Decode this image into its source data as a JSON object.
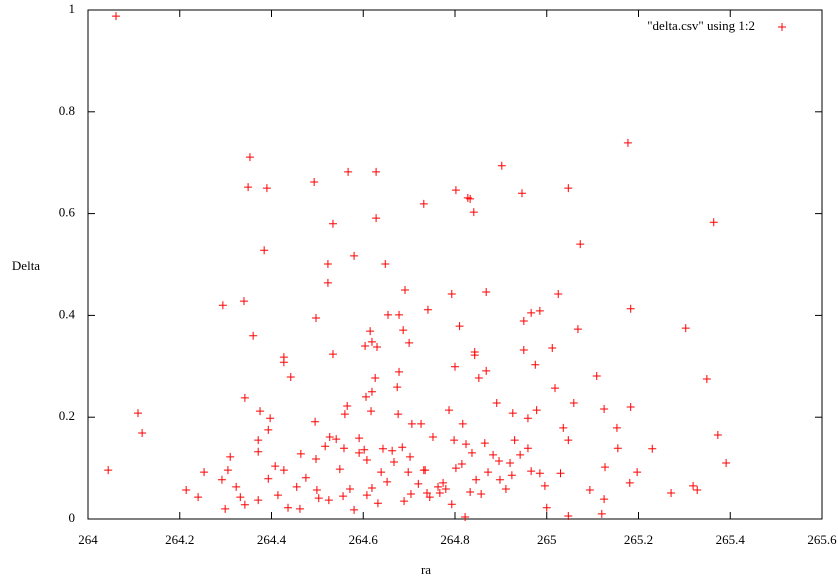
{
  "chart_data": {
    "type": "scatter",
    "xlabel": "ra",
    "ylabel": "Delta",
    "xlim": [
      264,
      265.6
    ],
    "ylim": [
      0,
      1
    ],
    "xticks": [
      264,
      264.2,
      264.4,
      264.6,
      264.8,
      265,
      265.2,
      265.4,
      265.6
    ],
    "yticks": [
      0,
      0.2,
      0.4,
      0.6,
      0.8,
      1
    ],
    "legend": "upper right",
    "series": [
      {
        "name": "\"delta.csv\" using 1:2",
        "color": "#ff0000",
        "x": [
          264.061,
          264.044,
          264.109,
          264.118,
          264.214,
          264.24,
          264.253,
          264.294,
          264.353,
          264.349,
          264.39,
          264.34,
          264.36,
          264.384,
          264.342,
          264.427,
          264.427,
          264.442,
          264.493,
          264.497,
          264.523,
          264.523,
          264.534,
          264.534,
          264.565,
          264.58,
          264.567,
          264.628,
          264.628,
          264.648,
          264.604,
          264.619,
          264.615,
          264.63,
          264.654,
          264.691,
          264.678,
          264.687,
          264.7,
          264.732,
          264.741,
          264.802,
          264.828,
          264.833,
          264.841,
          264.793,
          264.868,
          264.81,
          264.843,
          264.843,
          264.852,
          264.868,
          264.8,
          264.902,
          264.946,
          264.95,
          264.966,
          264.985,
          264.95,
          264.975,
          265.025,
          265.012,
          265.047,
          265.073,
          265.068,
          265.018,
          265.059,
          265.109,
          265.177,
          265.183,
          265.183,
          265.303,
          265.364,
          265.349,
          265.373,
          265.391,
          265.319,
          265.328,
          265.271,
          265.23,
          265.197,
          265.181,
          265.153,
          265.155,
          265.125,
          265.127,
          265.12,
          265.125,
          265.094,
          265.047,
          265.047,
          265.036,
          265.03,
          264.996,
          265.0,
          264.985,
          264.978,
          264.959,
          264.926,
          264.93,
          264.92,
          264.896,
          264.891,
          264.865,
          264.837,
          264.824,
          264.798,
          264.817,
          264.787,
          264.752,
          264.726,
          264.706,
          264.676,
          264.674,
          264.678,
          264.626,
          264.619,
          264.606,
          264.617,
          264.56,
          264.527,
          264.495,
          264.464,
          264.427,
          264.408,
          264.371,
          264.371,
          264.375,
          264.397,
          264.393,
          264.31,
          264.305,
          264.292,
          264.323,
          264.332,
          264.299,
          264.342,
          264.371,
          264.393,
          264.414,
          264.455,
          264.462,
          264.499,
          264.497,
          264.525,
          264.549,
          264.571,
          264.58,
          264.591,
          264.608,
          264.619,
          264.632,
          264.639,
          264.652,
          264.667,
          264.685,
          264.698,
          264.704,
          264.72,
          264.735,
          264.745,
          264.763,
          264.774,
          264.78,
          264.793,
          264.802,
          264.815,
          264.822,
          264.833,
          264.846,
          264.857,
          264.872,
          264.883,
          264.898,
          264.911,
          264.924,
          264.942,
          264.959,
          264.966,
          264.517,
          264.541,
          264.558,
          264.591,
          264.602,
          264.643,
          264.663,
          264.702,
          264.732,
          264.767,
          264.739,
          264.689,
          264.608,
          264.556,
          264.503,
          264.475,
          264.436
        ],
        "values": [
          0.988,
          0.096,
          0.208,
          0.169,
          0.057,
          0.043,
          0.092,
          0.42,
          0.711,
          0.652,
          0.65,
          0.428,
          0.36,
          0.528,
          0.238,
          0.318,
          0.308,
          0.279,
          0.662,
          0.395,
          0.501,
          0.464,
          0.58,
          0.324,
          0.222,
          0.517,
          0.682,
          0.682,
          0.591,
          0.501,
          0.34,
          0.348,
          0.369,
          0.338,
          0.401,
          0.45,
          0.401,
          0.371,
          0.346,
          0.619,
          0.411,
          0.646,
          0.631,
          0.629,
          0.603,
          0.442,
          0.446,
          0.379,
          0.328,
          0.322,
          0.277,
          0.291,
          0.299,
          0.694,
          0.64,
          0.389,
          0.405,
          0.409,
          0.332,
          0.303,
          0.442,
          0.336,
          0.65,
          0.54,
          0.373,
          0.257,
          0.228,
          0.281,
          0.739,
          0.413,
          0.22,
          0.375,
          0.583,
          0.275,
          0.165,
          0.11,
          0.065,
          0.057,
          0.051,
          0.138,
          0.092,
          0.071,
          0.179,
          0.139,
          0.216,
          0.102,
          0.01,
          0.039,
          0.057,
          0.006,
          0.155,
          0.179,
          0.09,
          0.065,
          0.022,
          0.09,
          0.214,
          0.198,
          0.208,
          0.155,
          0.11,
          0.114,
          0.228,
          0.149,
          0.13,
          0.147,
          0.155,
          0.187,
          0.214,
          0.161,
          0.187,
          0.187,
          0.206,
          0.259,
          0.289,
          0.277,
          0.25,
          0.24,
          0.212,
          0.206,
          0.161,
          0.191,
          0.128,
          0.096,
          0.104,
          0.132,
          0.155,
          0.212,
          0.198,
          0.175,
          0.122,
          0.096,
          0.077,
          0.063,
          0.043,
          0.02,
          0.028,
          0.037,
          0.079,
          0.047,
          0.063,
          0.02,
          0.057,
          0.118,
          0.037,
          0.098,
          0.059,
          0.018,
          0.13,
          0.116,
          0.061,
          0.031,
          0.092,
          0.073,
          0.112,
          0.141,
          0.092,
          0.049,
          0.069,
          0.096,
          0.043,
          0.063,
          0.071,
          0.059,
          0.029,
          0.1,
          0.108,
          0.004,
          0.053,
          0.077,
          0.049,
          0.092,
          0.126,
          0.077,
          0.059,
          0.086,
          0.126,
          0.139,
          0.094,
          0.143,
          0.157,
          0.139,
          0.159,
          0.136,
          0.138,
          0.134,
          0.122,
          0.096,
          0.051,
          0.051,
          0.035,
          0.047,
          0.045,
          0.041,
          0.081,
          0.022
        ]
      }
    ]
  }
}
